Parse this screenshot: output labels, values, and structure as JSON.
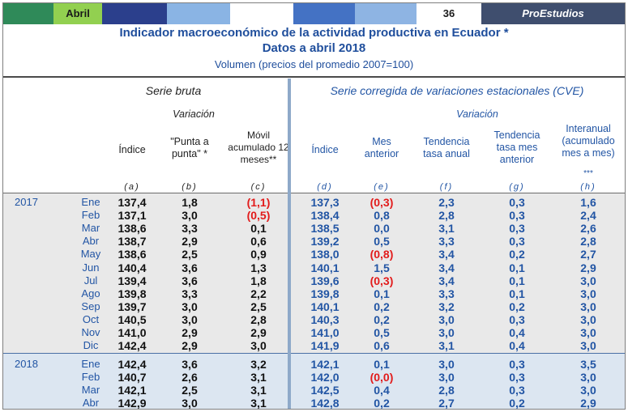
{
  "topbar": {
    "month": "Abril",
    "page": "36",
    "brand": "ProEstudios",
    "colors": {
      "green": "#2f8a59",
      "lime": "#92d050",
      "navy": "#2b3f8c",
      "sky": "#8ab4e4",
      "steel": "#4472c4",
      "lightblue": "#8eb4e3",
      "gray": "#3f4e6e"
    }
  },
  "title": {
    "line1": "Indicador macroeconómico de la actividad  productiva en Ecuador *",
    "line2": "Datos a abril  2018",
    "line3": "Volumen (precios del promedio 2007=100)"
  },
  "headers": {
    "serie_bruta": "Serie bruta",
    "variacion_left": "Variación",
    "serie_cve": "Serie corregida de variaciones estacionales (CVE)",
    "variacion_right": "Variación",
    "cols": [
      {
        "label": "Índice",
        "letter": "(a)"
      },
      {
        "label": "\"Punta a punta\" *",
        "letter": "(b)"
      },
      {
        "label": "Móvil acumulado 12 meses**",
        "letter": "(c)"
      },
      {
        "label": "Índice",
        "letter": "(d)"
      },
      {
        "label": "Mes anterior",
        "letter": "(e)"
      },
      {
        "label": "Tendencia tasa anual",
        "letter": "(f)"
      },
      {
        "label": "Tendencia tasa mes anterior",
        "letter": "(g)"
      },
      {
        "label": "Interanual (acumulado mes a mes)",
        "letter": "(h)",
        "note": "***"
      }
    ]
  },
  "groups": [
    {
      "year": "2017",
      "rows": [
        {
          "month": "Ene",
          "v": [
            "137,4",
            "1,8",
            "(1,1)",
            "137,3",
            "(0,3)",
            "2,3",
            "0,3",
            "1,6"
          ]
        },
        {
          "month": "Feb",
          "v": [
            "137,1",
            "3,0",
            "(0,5)",
            "138,4",
            "0,8",
            "2,8",
            "0,3",
            "2,4"
          ]
        },
        {
          "month": "Mar",
          "v": [
            "138,6",
            "3,3",
            "0,1",
            "138,5",
            "0,0",
            "3,1",
            "0,3",
            "2,6"
          ]
        },
        {
          "month": "Abr",
          "v": [
            "138,7",
            "2,9",
            "0,6",
            "139,2",
            "0,5",
            "3,3",
            "0,3",
            "2,8"
          ]
        },
        {
          "month": "May",
          "v": [
            "138,6",
            "2,5",
            "0,9",
            "138,0",
            "(0,8)",
            "3,4",
            "0,2",
            "2,7"
          ]
        },
        {
          "month": "Jun",
          "v": [
            "140,4",
            "3,6",
            "1,3",
            "140,1",
            "1,5",
            "3,4",
            "0,1",
            "2,9"
          ]
        },
        {
          "month": "Jul",
          "v": [
            "139,4",
            "3,6",
            "1,8",
            "139,6",
            "(0,3)",
            "3,4",
            "0,1",
            "3,0"
          ]
        },
        {
          "month": "Ago",
          "v": [
            "139,8",
            "3,3",
            "2,2",
            "139,8",
            "0,1",
            "3,3",
            "0,1",
            "3,0"
          ]
        },
        {
          "month": "Sep",
          "v": [
            "139,7",
            "3,0",
            "2,5",
            "140,1",
            "0,2",
            "3,2",
            "0,2",
            "3,0"
          ]
        },
        {
          "month": "Oct",
          "v": [
            "140,5",
            "3,0",
            "2,8",
            "140,3",
            "0,2",
            "3,0",
            "0,3",
            "3,0"
          ]
        },
        {
          "month": "Nov",
          "v": [
            "141,0",
            "2,9",
            "2,9",
            "141,0",
            "0,5",
            "3,0",
            "0,4",
            "3,0"
          ]
        },
        {
          "month": "Dic",
          "v": [
            "142,4",
            "2,9",
            "3,0",
            "141,9",
            "0,6",
            "3,1",
            "0,4",
            "3,0"
          ]
        }
      ]
    },
    {
      "year": "2018",
      "rows": [
        {
          "month": "Ene",
          "v": [
            "142,4",
            "3,6",
            "3,2",
            "142,1",
            "0,1",
            "3,0",
            "0,3",
            "3,5"
          ]
        },
        {
          "month": "Feb",
          "v": [
            "140,7",
            "2,6",
            "3,1",
            "142,0",
            "(0,0)",
            "3,0",
            "0,3",
            "3,0"
          ]
        },
        {
          "month": "Mar",
          "v": [
            "142,1",
            "2,5",
            "3,1",
            "142,5",
            "0,4",
            "2,8",
            "0,3",
            "3,0"
          ]
        },
        {
          "month": "Abr",
          "v": [
            "142,9",
            "3,0",
            "3,1",
            "142,8",
            "0,2",
            "2,7",
            "0,2",
            "2,9"
          ]
        }
      ]
    }
  ]
}
